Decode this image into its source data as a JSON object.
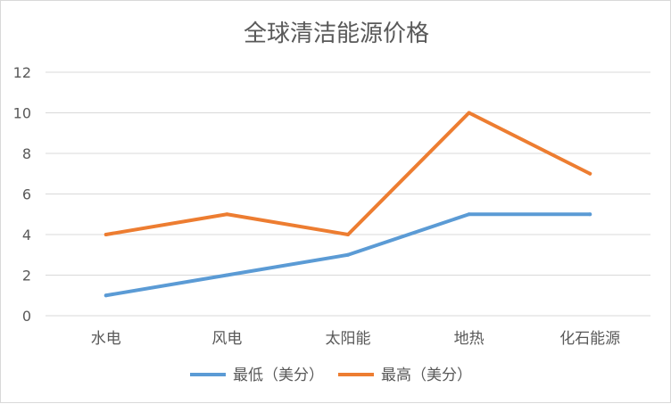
{
  "chart_data": {
    "type": "line",
    "title": "全球清洁能源价格",
    "categories": [
      "水电",
      "风电",
      "太阳能",
      "地热",
      "化石能源"
    ],
    "series": [
      {
        "name": "最低（美分）",
        "color": "#5b9bd5",
        "values": [
          1,
          2,
          3,
          5,
          5
        ]
      },
      {
        "name": "最高（美分）",
        "color": "#ed7d31",
        "values": [
          4,
          5,
          4,
          10,
          7
        ]
      }
    ],
    "ylim": [
      0,
      12
    ],
    "yticks": [
      "0",
      "2",
      "4",
      "6",
      "8",
      "10",
      "12"
    ],
    "grid": true,
    "legend_position": "bottom"
  }
}
